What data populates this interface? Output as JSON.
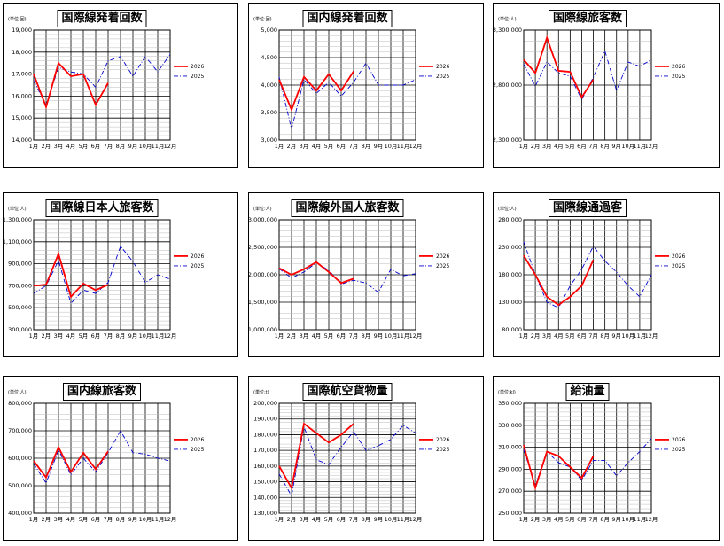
{
  "months": [
    "1月",
    "2月",
    "3月",
    "4月",
    "5月",
    "6月",
    "7月",
    "8月",
    "9月",
    "10月",
    "11月",
    "12月"
  ],
  "legend": {
    "current": "2026",
    "previous": "2025"
  },
  "colors": {
    "current": "#ff0000",
    "previous": "#0000cc"
  },
  "chart_data": [
    {
      "type": "line",
      "title": "国際線発着回数",
      "unit": "(単位:回)",
      "ylim": [
        14000,
        19000
      ],
      "yticks": [
        "14,000",
        "15,000",
        "16,000",
        "17,000",
        "18,000",
        "19,000"
      ],
      "series": [
        {
          "name": "2026",
          "values": [
            17000,
            15500,
            17500,
            16900,
            17000,
            15600,
            16600
          ]
        },
        {
          "name": "2025",
          "values": [
            16700,
            15600,
            17300,
            17100,
            17000,
            16400,
            17600,
            17800,
            16900,
            17800,
            17100,
            17900
          ]
        }
      ]
    },
    {
      "type": "line",
      "title": "国内線発着回数",
      "unit": "(単位:回)",
      "ylim": [
        3000,
        5000
      ],
      "yticks": [
        "3,000",
        "3,500",
        "4,000",
        "4,500",
        "5,000"
      ],
      "series": [
        {
          "name": "2026",
          "values": [
            4100,
            3550,
            4150,
            3900,
            4200,
            3900,
            4250
          ]
        },
        {
          "name": "2025",
          "values": [
            4150,
            3200,
            4100,
            3850,
            4050,
            3800,
            4050,
            4400,
            4000,
            4000,
            4000,
            4100
          ]
        }
      ]
    },
    {
      "type": "line",
      "title": "国際線旅客数",
      "unit": "(単位:人)",
      "ylim": [
        2300000,
        3300000
      ],
      "yticks": [
        "2,300,000",
        "2,800,000",
        "3,300,000"
      ],
      "series": [
        {
          "name": "2026",
          "values": [
            3030000,
            2910000,
            3230000,
            2930000,
            2920000,
            2690000,
            2850000
          ]
        },
        {
          "name": "2025",
          "values": [
            2990000,
            2790000,
            3010000,
            2910000,
            2880000,
            2670000,
            2870000,
            3110000,
            2750000,
            3010000,
            2970000,
            3030000
          ]
        }
      ]
    },
    {
      "type": "line",
      "title": "国際線日本人旅客数",
      "unit": "(単位:人)",
      "ylim": [
        300000,
        1300000
      ],
      "yticks": [
        "300,000",
        "500,000",
        "700,000",
        "900,000",
        "1,100,000",
        "1,300,000"
      ],
      "series": [
        {
          "name": "2026",
          "values": [
            700000,
            710000,
            990000,
            600000,
            720000,
            660000,
            710000
          ]
        },
        {
          "name": "2025",
          "values": [
            630000,
            700000,
            930000,
            540000,
            660000,
            630000,
            730000,
            1060000,
            920000,
            730000,
            800000,
            760000
          ]
        }
      ]
    },
    {
      "type": "line",
      "title": "国際線外国人旅客数",
      "unit": "(単位:人)",
      "ylim": [
        1000000,
        3000000
      ],
      "yticks": [
        "1,000,000",
        "1,500,000",
        "2,000,000",
        "2,500,000",
        "3,000,000"
      ],
      "series": [
        {
          "name": "2026",
          "values": [
            2120000,
            2000000,
            2100000,
            2230000,
            2050000,
            1850000,
            1930000
          ]
        },
        {
          "name": "2025",
          "values": [
            2110000,
            1940000,
            2050000,
            2220000,
            2080000,
            1830000,
            1900000,
            1850000,
            1680000,
            2100000,
            1980000,
            2020000
          ]
        }
      ]
    },
    {
      "type": "line",
      "title": "国際線通過客",
      "unit": "(単位:人)",
      "ylim": [
        80000,
        280000
      ],
      "yticks": [
        "80,000",
        "130,000",
        "180,000",
        "230,000",
        "280,000"
      ],
      "series": [
        {
          "name": "2026",
          "values": [
            215000,
            180000,
            140000,
            125000,
            140000,
            160000,
            207000
          ]
        },
        {
          "name": "2025",
          "values": [
            240000,
            180000,
            130000,
            120000,
            160000,
            190000,
            232000,
            205000,
            185000,
            160000,
            140000,
            180000
          ]
        }
      ]
    },
    {
      "type": "line",
      "title": "国内線旅客数",
      "unit": "(単位:人)",
      "ylim": [
        400000,
        800000
      ],
      "yticks": [
        "400,000",
        "500,000",
        "600,000",
        "700,000",
        "800,000"
      ],
      "series": [
        {
          "name": "2026",
          "values": [
            590000,
            530000,
            640000,
            550000,
            620000,
            560000,
            625000
          ]
        },
        {
          "name": "2025",
          "values": [
            580000,
            510000,
            630000,
            540000,
            600000,
            550000,
            620000,
            700000,
            620000,
            615000,
            600000,
            590000
          ]
        }
      ]
    },
    {
      "type": "line",
      "title": "国際航空貨物量",
      "unit": "(単位:t)",
      "ylim": [
        130000,
        200000
      ],
      "yticks": [
        "130,000",
        "140,000",
        "150,000",
        "160,000",
        "170,000",
        "180,000",
        "190,000",
        "200,000"
      ],
      "series": [
        {
          "name": "2026",
          "values": [
            160000,
            146000,
            187000,
            181000,
            175000,
            180000,
            187000
          ]
        },
        {
          "name": "2025",
          "values": [
            155000,
            141000,
            185000,
            164000,
            161000,
            172000,
            182000,
            170000,
            173000,
            177000,
            186000,
            181000
          ]
        }
      ]
    },
    {
      "type": "line",
      "title": "給油量",
      "unit": "(単位:kl)",
      "ylim": [
        250000,
        350000
      ],
      "yticks": [
        "250,000",
        "270,000",
        "290,000",
        "310,000",
        "330,000",
        "350,000"
      ],
      "series": [
        {
          "name": "2026",
          "values": [
            312000,
            273000,
            306000,
            302000,
            292000,
            282000,
            302000
          ]
        },
        {
          "name": "2025",
          "values": [
            308000,
            275000,
            306000,
            296000,
            292000,
            280000,
            298000,
            298000,
            284000,
            296000,
            306000,
            318000
          ]
        }
      ]
    }
  ]
}
